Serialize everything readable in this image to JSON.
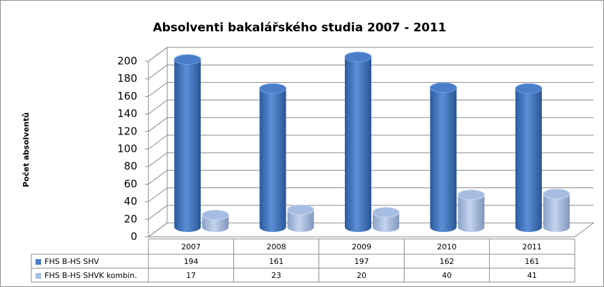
{
  "chart_data": {
    "type": "bar3d",
    "title": "Absolventi bakalářského studia 2007 - 2011",
    "y_label": "Počet absolventů",
    "categories": [
      "2007",
      "2008",
      "2009",
      "2010",
      "2011"
    ],
    "series": [
      {
        "name": "FHS B-HS SHV",
        "color": "#4a7ec8",
        "values": [
          194,
          161,
          197,
          162,
          161
        ]
      },
      {
        "name": "FHS B-HS SHVK kombin.",
        "color": "#a6bde3",
        "values": [
          17,
          23,
          20,
          40,
          41
        ]
      }
    ],
    "ylim": [
      0,
      200
    ],
    "yticks": [
      0,
      20,
      40,
      60,
      80,
      100,
      120,
      140,
      160,
      180,
      200
    ],
    "grid": true
  }
}
